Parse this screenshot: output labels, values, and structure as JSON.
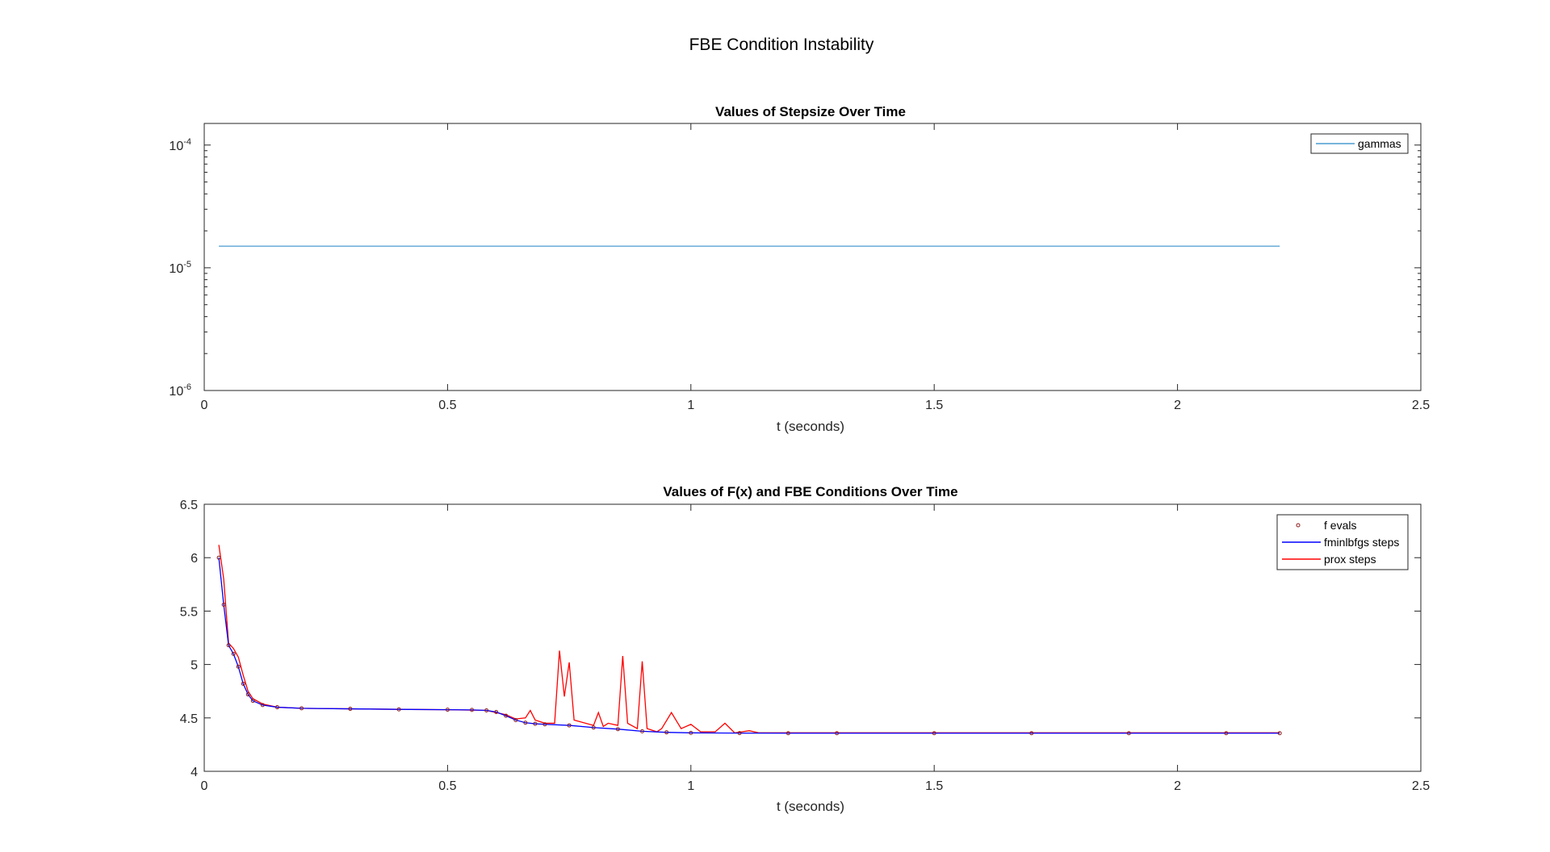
{
  "figure": {
    "title": "FBE Condition Instability"
  },
  "colors": {
    "gammas": "#4a9bd0",
    "f_evals": "#8b1a1a",
    "fminlbfgs": "#0000ff",
    "prox": "#ff0000",
    "axes": "#262626"
  },
  "chart_data": [
    {
      "type": "line",
      "title": "Values of Stepsize Over Time",
      "xlabel": "t (seconds)",
      "ylabel": "",
      "yscale": "log",
      "xlim": [
        0,
        2.5
      ],
      "ylim": [
        1e-06,
        0.00015
      ],
      "x_ticks": [
        0,
        0.5,
        1,
        1.5,
        2,
        2.5
      ],
      "x_tick_labels": [
        "0",
        "0.5",
        "1",
        "1.5",
        "2",
        "2.5"
      ],
      "y_ticks": [
        {
          "value": 1e-06,
          "base": "10",
          "exp": "-6"
        },
        {
          "value": 1e-05,
          "base": "10",
          "exp": "-5"
        },
        {
          "value": 0.0001,
          "base": "10",
          "exp": "-4"
        }
      ],
      "legend": {
        "position": "top-right",
        "entries": [
          "gammas"
        ]
      },
      "series": [
        {
          "name": "gammas",
          "x": [
            0.03,
            2.21
          ],
          "y": [
            1.5e-05,
            1.5e-05
          ]
        }
      ]
    },
    {
      "type": "line",
      "title": "Values of F(x) and FBE Conditions Over Time",
      "xlabel": "t (seconds)",
      "ylabel": "",
      "xlim": [
        0,
        2.5
      ],
      "ylim": [
        4,
        6.5
      ],
      "x_ticks": [
        0,
        0.5,
        1,
        1.5,
        2,
        2.5
      ],
      "x_tick_labels": [
        "0",
        "0.5",
        "1",
        "1.5",
        "2",
        "2.5"
      ],
      "y_ticks": [
        4,
        4.5,
        5,
        5.5,
        6,
        6.5
      ],
      "y_tick_labels": [
        "4",
        "4.5",
        "5",
        "5.5",
        "6",
        "6.5"
      ],
      "legend": {
        "position": "top-right",
        "entries": [
          "f evals",
          "fminlbfgs steps",
          "prox steps"
        ]
      },
      "series": [
        {
          "name": "f evals",
          "marker": "circle",
          "x": [
            0.03,
            0.04,
            0.05,
            0.06,
            0.07,
            0.08,
            0.09,
            0.1,
            0.12,
            0.15,
            0.2,
            0.3,
            0.4,
            0.5,
            0.55,
            0.58,
            0.6,
            0.62,
            0.64,
            0.66,
            0.68,
            0.7,
            0.75,
            0.8,
            0.85,
            0.9,
            0.95,
            1.0,
            1.1,
            1.2,
            1.3,
            1.5,
            1.7,
            1.9,
            2.1,
            2.21
          ],
          "y": [
            6.0,
            5.56,
            5.18,
            5.1,
            4.98,
            4.82,
            4.72,
            4.66,
            4.62,
            4.6,
            4.59,
            4.585,
            4.58,
            4.577,
            4.575,
            4.57,
            4.555,
            4.52,
            4.48,
            4.455,
            4.445,
            4.44,
            4.43,
            4.41,
            4.395,
            4.375,
            4.365,
            4.36,
            4.358,
            4.357,
            4.357,
            4.357,
            4.357,
            4.357,
            4.357,
            4.357
          ]
        },
        {
          "name": "fminlbfgs steps",
          "x": [
            0.03,
            0.04,
            0.05,
            0.06,
            0.07,
            0.08,
            0.09,
            0.1,
            0.12,
            0.15,
            0.2,
            0.3,
            0.4,
            0.5,
            0.55,
            0.58,
            0.6,
            0.62,
            0.64,
            0.66,
            0.68,
            0.7,
            0.75,
            0.8,
            0.85,
            0.9,
            0.95,
            1.0,
            1.1,
            1.2,
            1.3,
            1.5,
            1.7,
            1.9,
            2.1,
            2.21
          ],
          "y": [
            6.0,
            5.56,
            5.18,
            5.1,
            4.98,
            4.82,
            4.72,
            4.66,
            4.62,
            4.6,
            4.59,
            4.585,
            4.58,
            4.577,
            4.575,
            4.57,
            4.555,
            4.52,
            4.48,
            4.455,
            4.445,
            4.44,
            4.43,
            4.41,
            4.395,
            4.375,
            4.365,
            4.36,
            4.358,
            4.357,
            4.357,
            4.357,
            4.357,
            4.357,
            4.357,
            4.357
          ]
        },
        {
          "name": "prox steps",
          "x": [
            0.03,
            0.04,
            0.05,
            0.06,
            0.07,
            0.08,
            0.09,
            0.1,
            0.12,
            0.15,
            0.2,
            0.3,
            0.4,
            0.5,
            0.58,
            0.62,
            0.64,
            0.66,
            0.67,
            0.68,
            0.7,
            0.72,
            0.73,
            0.74,
            0.75,
            0.76,
            0.8,
            0.81,
            0.82,
            0.83,
            0.85,
            0.86,
            0.87,
            0.89,
            0.9,
            0.91,
            0.93,
            0.94,
            0.96,
            0.98,
            1.0,
            1.02,
            1.05,
            1.07,
            1.09,
            1.12,
            1.14,
            1.2,
            1.5,
            1.8,
            2.1,
            2.21
          ],
          "y": [
            6.12,
            5.8,
            5.2,
            5.15,
            5.07,
            4.9,
            4.75,
            4.68,
            4.63,
            4.6,
            4.59,
            4.585,
            4.58,
            4.577,
            4.57,
            4.53,
            4.49,
            4.5,
            4.57,
            4.48,
            4.45,
            4.45,
            5.13,
            4.7,
            5.02,
            4.48,
            4.43,
            4.55,
            4.42,
            4.45,
            4.43,
            5.08,
            4.45,
            4.4,
            5.03,
            4.4,
            4.37,
            4.4,
            4.55,
            4.4,
            4.44,
            4.37,
            4.37,
            4.45,
            4.36,
            4.38,
            4.36,
            4.36,
            4.36,
            4.36,
            4.36,
            4.36
          ]
        }
      ]
    }
  ]
}
